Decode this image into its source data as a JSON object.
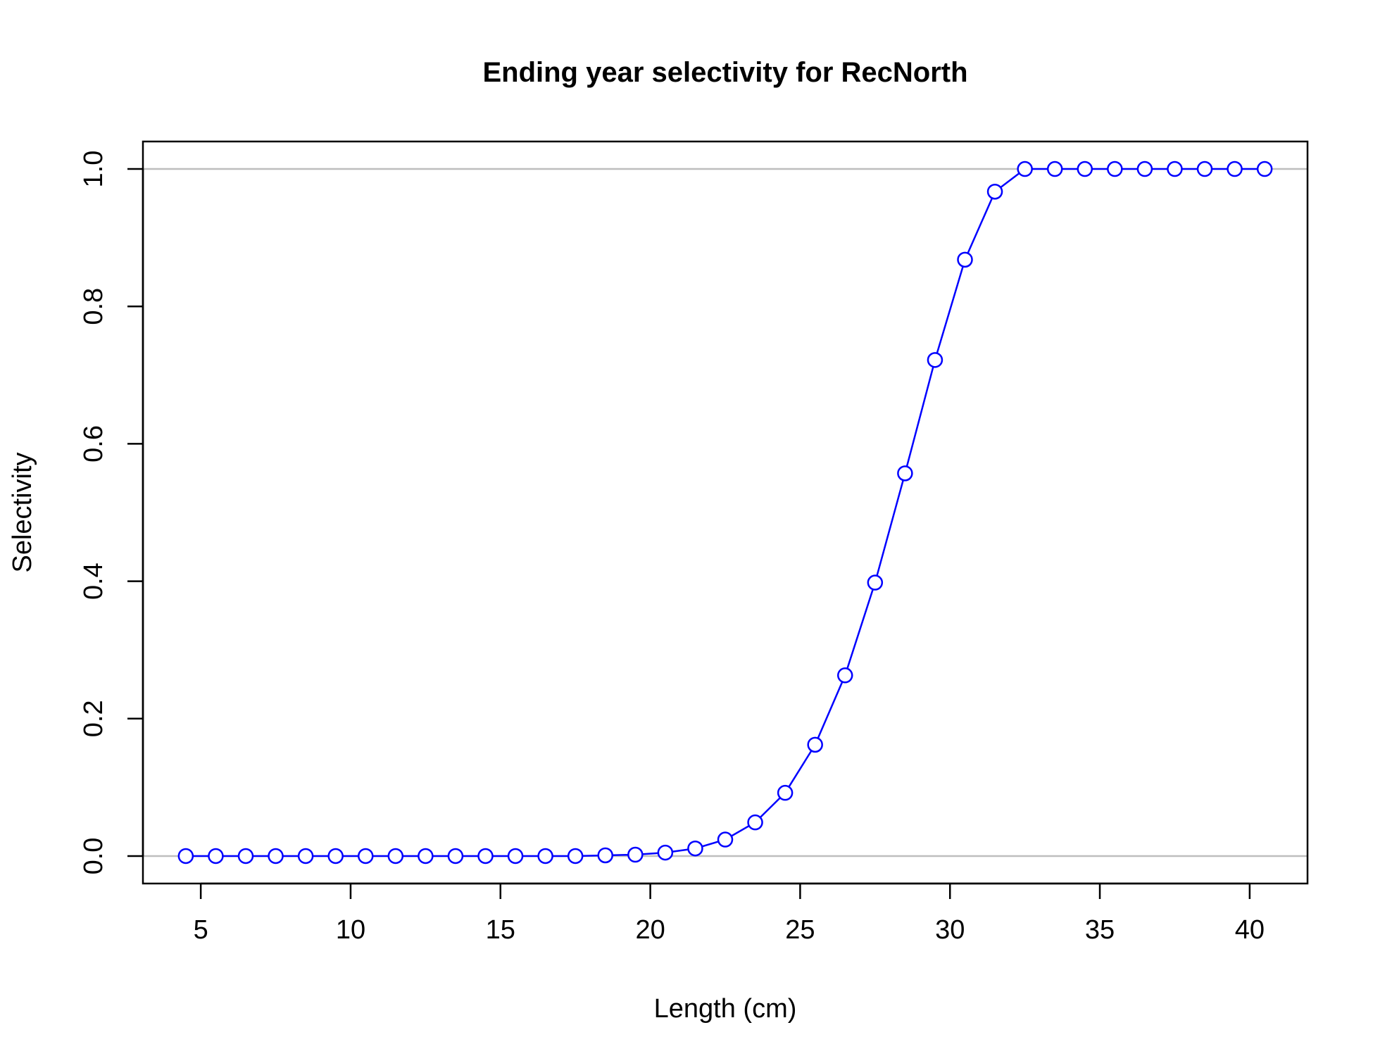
{
  "chart_data": {
    "type": "line",
    "title": "Ending year selectivity for RecNorth",
    "xlabel": "Length (cm)",
    "ylabel": "Selectivity",
    "xlim": [
      3.07,
      41.93
    ],
    "ylim": [
      -0.04,
      1.04
    ],
    "xticks": [
      5,
      10,
      15,
      20,
      25,
      30,
      35,
      40
    ],
    "yticks": [
      0.0,
      0.2,
      0.4,
      0.6,
      0.8,
      1.0
    ],
    "xtick_labels": [
      "5",
      "10",
      "15",
      "20",
      "25",
      "30",
      "35",
      "40"
    ],
    "ytick_labels": [
      "0.0",
      "0.2",
      "0.4",
      "0.6",
      "0.8",
      "1.0"
    ],
    "reference_lines": [
      0,
      1
    ],
    "grid": false,
    "series": [
      {
        "color": "#0000ff",
        "marker": "open-circle",
        "x": [
          4.5,
          5.5,
          6.5,
          7.5,
          8.5,
          9.5,
          10.5,
          11.5,
          12.5,
          13.5,
          14.5,
          15.5,
          16.5,
          17.5,
          18.5,
          19.5,
          20.5,
          21.5,
          22.5,
          23.5,
          24.5,
          25.5,
          26.5,
          27.5,
          28.5,
          29.5,
          30.5,
          31.5,
          32.5,
          33.5,
          34.5,
          35.5,
          36.5,
          37.5,
          38.5,
          39.5,
          40.5
        ],
        "values": [
          0,
          0,
          0,
          0,
          0,
          0,
          0,
          0,
          0,
          0,
          0,
          0,
          0,
          0,
          0.001,
          0.002,
          0.005,
          0.011,
          0.024,
          0.049,
          0.092,
          0.162,
          0.263,
          0.398,
          0.557,
          0.722,
          0.868,
          0.967,
          1,
          1,
          1,
          1,
          1,
          1,
          1,
          1,
          1
        ]
      }
    ]
  }
}
